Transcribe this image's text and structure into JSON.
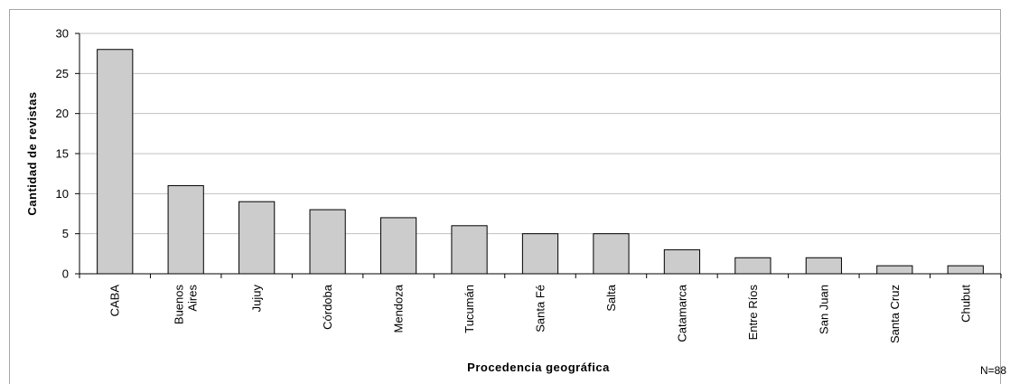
{
  "chart_data": {
    "type": "bar",
    "categories": [
      "CABA",
      "Buenos\nAires",
      "Jujuy",
      "Córdoba",
      "Mendoza",
      "Tucumán",
      "Santa Fé",
      "Salta",
      "Catamarca",
      "Entre Ríos",
      "San Juan",
      "Santa Cruz",
      "Chubut"
    ],
    "values": [
      28,
      11,
      9,
      8,
      7,
      6,
      5,
      5,
      3,
      2,
      2,
      1,
      1
    ],
    "title": "",
    "xlabel": "Procedencia geográfica",
    "ylabel": "Cantidad de revistas",
    "ylim": [
      0,
      30
    ],
    "yticks": [
      0,
      5,
      10,
      15,
      20,
      25,
      30
    ],
    "grid": true,
    "bar_color": "#cccccc",
    "bar_edge_color": "#000000",
    "gridline_color": "#c0c0c0"
  },
  "note": "N=88"
}
